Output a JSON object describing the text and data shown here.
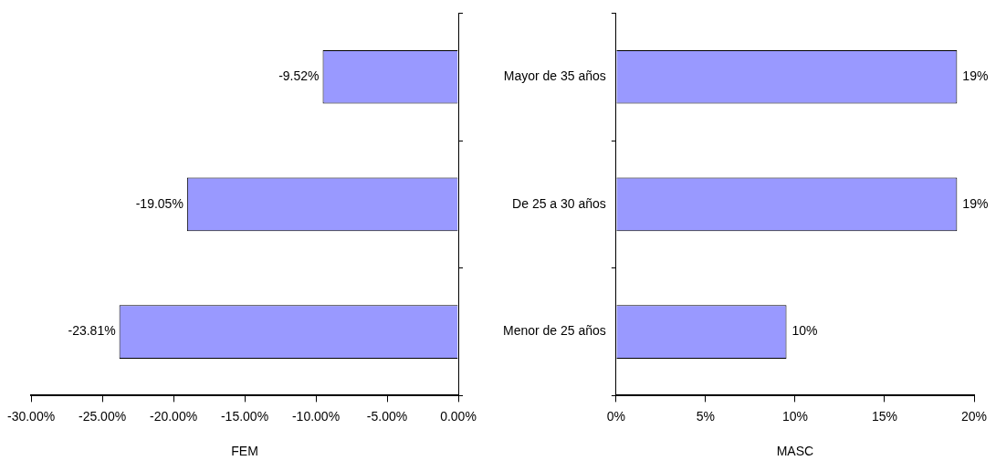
{
  "chart_data": [
    {
      "type": "bar",
      "orientation": "horizontal",
      "categories": [
        null,
        null,
        null
      ],
      "values": [
        -9.52,
        -19.05,
        -23.81
      ],
      "value_labels": [
        "-9.52%",
        "-19.05%",
        "-23.81%"
      ],
      "color": "#9999ff",
      "xlim": [
        -30,
        0
      ],
      "xticks": [
        {
          "value": -30,
          "label": "-30.00%"
        },
        {
          "value": -25,
          "label": "-25.00%"
        },
        {
          "value": -20,
          "label": "-20.00%"
        },
        {
          "value": -15,
          "label": "-15.00%"
        },
        {
          "value": -10,
          "label": "-10.00%"
        },
        {
          "value": -5,
          "label": "-5.00%"
        },
        {
          "value": 0,
          "label": "0.00%"
        }
      ],
      "xlabel": "FEM",
      "legend": false
    },
    {
      "type": "bar",
      "orientation": "horizontal",
      "categories": [
        "Mayor de 35 años",
        "De 25 a 30 años",
        "Menor de 25 años"
      ],
      "values": [
        19.05,
        19.05,
        9.52
      ],
      "value_labels": [
        "19%",
        "19%",
        "10%"
      ],
      "color": "#9999ff",
      "xlim": [
        0,
        20
      ],
      "xticks": [
        {
          "value": 0,
          "label": "0%"
        },
        {
          "value": 5,
          "label": "5%"
        },
        {
          "value": 10,
          "label": "10%"
        },
        {
          "value": 15,
          "label": "15%"
        },
        {
          "value": 20,
          "label": "20%"
        }
      ],
      "xlabel": "MASC",
      "legend": false
    }
  ]
}
